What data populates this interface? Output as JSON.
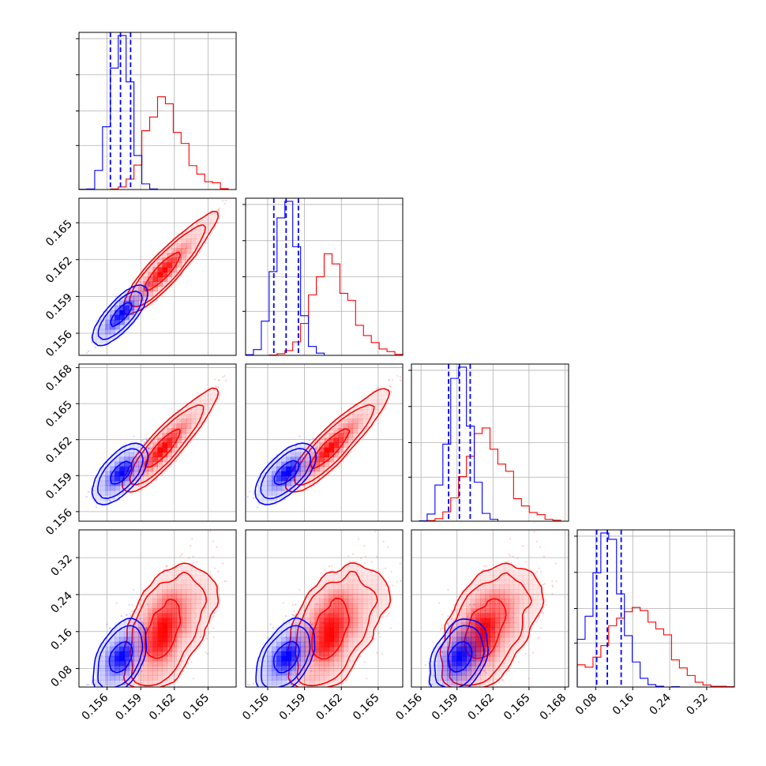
{
  "chart_data": {
    "type": "corner",
    "series": [
      {
        "name": "",
        "color": "#0000ff"
      },
      {
        "name": "",
        "color": "#ff0000"
      }
    ],
    "parameters": [
      {
        "index": 0,
        "range": [
          0.1535,
          0.1675
        ],
        "ticks": [
          0.156,
          0.159,
          0.162,
          0.165
        ],
        "tick_labels": [
          "0.156",
          "0.159",
          "0.162",
          "0.165"
        ]
      },
      {
        "index": 1,
        "range": [
          0.1542,
          0.167
        ],
        "ticks": [
          0.156,
          0.159,
          0.162,
          0.165
        ],
        "tick_labels": [
          "0.156",
          "0.159",
          "0.162",
          "0.165"
        ]
      },
      {
        "index": 2,
        "range": [
          0.1552,
          0.1683
        ],
        "ticks": [
          0.156,
          0.159,
          0.162,
          0.165,
          0.168
        ],
        "tick_labels": [
          "0.156",
          "0.159",
          "0.162",
          "0.165",
          "0.168"
        ]
      },
      {
        "index": 3,
        "range": [
          0.04,
          0.38
        ],
        "ticks": [
          0.08,
          0.16,
          0.24,
          0.32
        ],
        "tick_labels": [
          "0.08",
          "0.16",
          "0.24",
          "0.32"
        ]
      }
    ],
    "quantiles_blue": [
      [
        0.1563,
        0.1572,
        0.1581
      ],
      [
        0.1565,
        0.1575,
        0.1585
      ],
      [
        0.1583,
        0.1592,
        0.1601
      ],
      [
        0.082,
        0.105,
        0.135
      ]
    ],
    "distributions": {
      "blue": {
        "mean": [
          0.1572,
          0.1575,
          0.1592,
          0.105
        ],
        "sd": [
          0.00085,
          0.00088,
          0.00095,
          0.032
        ]
      },
      "red": {
        "mean": [
          0.1605,
          0.1606,
          0.1608,
          0.155
        ],
        "sd": [
          0.0022,
          0.0021,
          0.002,
          0.065
        ]
      }
    },
    "panels": [
      {
        "row": 0,
        "col": 0,
        "kind": "histogram"
      },
      {
        "row": 1,
        "col": 0,
        "kind": "2d"
      },
      {
        "row": 1,
        "col": 1,
        "kind": "histogram"
      },
      {
        "row": 2,
        "col": 0,
        "kind": "2d"
      },
      {
        "row": 2,
        "col": 1,
        "kind": "2d"
      },
      {
        "row": 2,
        "col": 2,
        "kind": "histogram"
      },
      {
        "row": 3,
        "col": 0,
        "kind": "2d"
      },
      {
        "row": 3,
        "col": 1,
        "kind": "2d"
      },
      {
        "row": 3,
        "col": 2,
        "kind": "2d"
      },
      {
        "row": 3,
        "col": 3,
        "kind": "histogram"
      }
    ],
    "grid": true,
    "legend": "none"
  }
}
